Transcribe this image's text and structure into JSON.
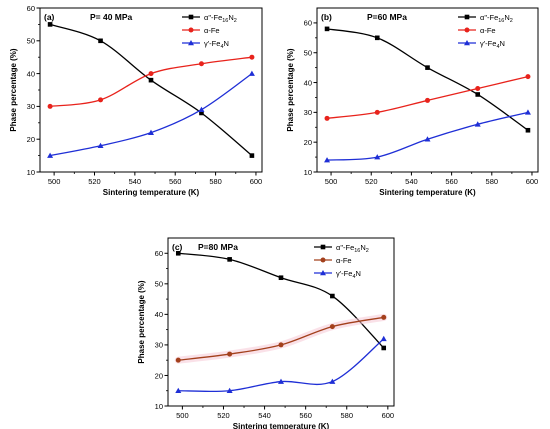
{
  "chart_data": [
    {
      "type": "line",
      "panel_label": "(a)",
      "title": "P= 40 MPa",
      "xlabel": "Sintering temperature (K)",
      "ylabel": "Phase percentage (%)",
      "xlim": [
        493,
        603
      ],
      "ylim": [
        10,
        60
      ],
      "xticks": [
        500,
        520,
        540,
        560,
        580,
        600
      ],
      "yticks": [
        10,
        20,
        30,
        40,
        50,
        60
      ],
      "grid": false,
      "legend": "top-right",
      "x": [
        498,
        523,
        548,
        573,
        598
      ],
      "series": [
        {
          "name": "α\"-Fe₁₆N₂",
          "values": [
            55,
            50,
            38,
            28,
            15
          ],
          "color": "#000000",
          "marker": "square"
        },
        {
          "name": "α-Fe",
          "values": [
            30,
            32,
            40,
            43,
            45
          ],
          "color": "#e8231c",
          "marker": "circle"
        },
        {
          "name": "γ'-Fe₄N",
          "values": [
            15,
            18,
            22,
            29,
            40
          ],
          "color": "#1f2fd6",
          "marker": "triangle"
        }
      ]
    },
    {
      "type": "line",
      "panel_label": "(b)",
      "title": "P=60 MPa",
      "xlabel": "Sintering temperature (K)",
      "ylabel": "Phase percentage (%)",
      "xlim": [
        493,
        603
      ],
      "ylim": [
        10,
        65
      ],
      "xticks": [
        500,
        520,
        540,
        560,
        580,
        600
      ],
      "yticks": [
        10,
        20,
        30,
        40,
        50,
        60
      ],
      "grid": false,
      "legend": "top-right",
      "x": [
        498,
        523,
        548,
        573,
        598
      ],
      "series": [
        {
          "name": "α\"-Fe₁₆N₂",
          "values": [
            58,
            55,
            45,
            36,
            24
          ],
          "color": "#000000",
          "marker": "square"
        },
        {
          "name": "α-Fe",
          "values": [
            28,
            30,
            34,
            38,
            42
          ],
          "color": "#e8231c",
          "marker": "circle"
        },
        {
          "name": "γ'-Fe₄N",
          "values": [
            14,
            15,
            21,
            26,
            30
          ],
          "color": "#1f2fd6",
          "marker": "triangle"
        }
      ]
    },
    {
      "type": "line",
      "panel_label": "(c)",
      "title": "P=80 MPa",
      "xlabel": "Sintering temperature (K)",
      "ylabel": "Phase percentage (%)",
      "xlim": [
        493,
        603
      ],
      "ylim": [
        10,
        65
      ],
      "xticks": [
        500,
        520,
        540,
        560,
        580,
        600
      ],
      "yticks": [
        10,
        20,
        30,
        40,
        50,
        60
      ],
      "grid": false,
      "legend": "top-right",
      "x": [
        498,
        523,
        548,
        573,
        598
      ],
      "series": [
        {
          "name": "α\"-Fe₁₆N₂",
          "values": [
            60,
            58,
            52,
            46,
            29
          ],
          "color": "#000000",
          "marker": "square"
        },
        {
          "name": "α-Fe",
          "values": [
            25,
            27,
            30,
            36,
            39
          ],
          "color": "#a3401c",
          "marker": "circle"
        },
        {
          "name": "γ'-Fe₄N",
          "values": [
            15,
            15,
            18,
            18,
            32
          ],
          "color": "#1f2fd6",
          "marker": "triangle"
        }
      ]
    }
  ]
}
